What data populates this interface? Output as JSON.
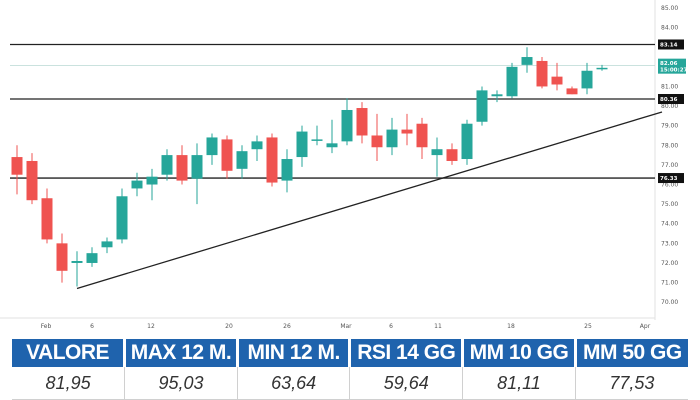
{
  "chart_data": {
    "type": "candlestick",
    "ylim": [
      69.5,
      85
    ],
    "y_ticks": [
      "85.00",
      "84.00",
      "83.00",
      "82.00",
      "81.00",
      "80.00",
      "79.00",
      "78.00",
      "77.00",
      "76.00",
      "75.00",
      "74.00",
      "73.00",
      "72.00",
      "71.00",
      "70.00"
    ],
    "x_ticks": [
      "Feb",
      "6",
      "12",
      "20",
      "26",
      "Mar",
      "6",
      "11",
      "18",
      "25",
      "Apr"
    ],
    "candles": [
      {
        "o": 77.4,
        "h": 78.0,
        "l": 75.5,
        "c": 76.5
      },
      {
        "o": 77.2,
        "h": 77.6,
        "l": 75.0,
        "c": 75.2
      },
      {
        "o": 75.3,
        "h": 75.8,
        "l": 73.0,
        "c": 73.2
      },
      {
        "o": 73.0,
        "h": 73.5,
        "l": 71.0,
        "c": 71.6
      },
      {
        "o": 72.0,
        "h": 72.6,
        "l": 70.8,
        "c": 72.1
      },
      {
        "o": 72.0,
        "h": 72.8,
        "l": 71.8,
        "c": 72.5
      },
      {
        "o": 72.8,
        "h": 73.3,
        "l": 72.5,
        "c": 73.1
      },
      {
        "o": 73.2,
        "h": 75.8,
        "l": 73.0,
        "c": 75.4
      },
      {
        "o": 75.8,
        "h": 76.6,
        "l": 75.4,
        "c": 76.2
      },
      {
        "o": 76.0,
        "h": 76.8,
        "l": 75.2,
        "c": 76.4
      },
      {
        "o": 76.5,
        "h": 77.8,
        "l": 76.2,
        "c": 77.5
      },
      {
        "o": 77.5,
        "h": 78.0,
        "l": 76.0,
        "c": 76.2
      },
      {
        "o": 76.3,
        "h": 78.1,
        "l": 75.0,
        "c": 77.5
      },
      {
        "o": 77.5,
        "h": 78.6,
        "l": 77.0,
        "c": 78.4
      },
      {
        "o": 78.3,
        "h": 78.5,
        "l": 76.3,
        "c": 76.7
      },
      {
        "o": 76.8,
        "h": 78.0,
        "l": 76.3,
        "c": 77.7
      },
      {
        "o": 77.8,
        "h": 78.5,
        "l": 77.2,
        "c": 78.2
      },
      {
        "o": 78.4,
        "h": 78.6,
        "l": 75.9,
        "c": 76.1
      },
      {
        "o": 76.2,
        "h": 77.8,
        "l": 75.6,
        "c": 77.3
      },
      {
        "o": 77.4,
        "h": 79.0,
        "l": 76.9,
        "c": 78.7
      },
      {
        "o": 78.3,
        "h": 79.0,
        "l": 78.0,
        "c": 78.3
      },
      {
        "o": 77.9,
        "h": 79.3,
        "l": 77.6,
        "c": 78.1
      },
      {
        "o": 78.2,
        "h": 80.4,
        "l": 78.0,
        "c": 79.8
      },
      {
        "o": 79.9,
        "h": 80.2,
        "l": 78.1,
        "c": 78.5
      },
      {
        "o": 78.5,
        "h": 79.6,
        "l": 77.2,
        "c": 77.9
      },
      {
        "o": 77.9,
        "h": 79.4,
        "l": 77.5,
        "c": 78.8
      },
      {
        "o": 78.8,
        "h": 79.6,
        "l": 78.0,
        "c": 78.6
      },
      {
        "o": 79.1,
        "h": 79.4,
        "l": 77.3,
        "c": 77.9
      },
      {
        "o": 77.5,
        "h": 78.4,
        "l": 76.4,
        "c": 77.8
      },
      {
        "o": 77.8,
        "h": 78.1,
        "l": 77.0,
        "c": 77.2
      },
      {
        "o": 77.3,
        "h": 79.3,
        "l": 77.0,
        "c": 79.1
      },
      {
        "o": 79.2,
        "h": 81.0,
        "l": 79.0,
        "c": 80.8
      },
      {
        "o": 80.5,
        "h": 80.8,
        "l": 80.2,
        "c": 80.6
      },
      {
        "o": 80.5,
        "h": 82.2,
        "l": 80.4,
        "c": 82.0
      },
      {
        "o": 82.1,
        "h": 83.0,
        "l": 81.7,
        "c": 82.5
      },
      {
        "o": 82.3,
        "h": 82.5,
        "l": 80.9,
        "c": 81.0
      },
      {
        "o": 81.5,
        "h": 82.2,
        "l": 80.8,
        "c": 81.1
      },
      {
        "o": 80.9,
        "h": 81.0,
        "l": 80.6,
        "c": 80.6
      },
      {
        "o": 80.9,
        "h": 82.2,
        "l": 80.6,
        "c": 81.8
      },
      {
        "o": 81.9,
        "h": 82.1,
        "l": 81.8,
        "c": 81.95
      }
    ],
    "levels": [
      {
        "label": "83.14",
        "value": 83.14,
        "color": "#222222"
      },
      {
        "label": "80.36",
        "value": 80.36,
        "color": "#222222"
      },
      {
        "label": "76.33",
        "value": 76.33,
        "color": "#222222"
      }
    ],
    "last_price": {
      "label": "82.06",
      "sublabel": "15:00:27",
      "value": 82.06,
      "color": "#26a69a"
    },
    "trendline": {
      "from": {
        "candle": 4,
        "value": 70.7
      },
      "to": {
        "candle": 43,
        "value": 79.7
      }
    },
    "colors": {
      "up": "#26a69a",
      "down": "#ef5350",
      "line": "#222222"
    }
  },
  "stats": {
    "headers": [
      "VALORE",
      "MAX 12 M.",
      "MIN 12 M.",
      "RSI 14 GG",
      "MM 10 GG",
      "MM 50 GG"
    ],
    "values": [
      "81,95",
      "95,03",
      "63,64",
      "59,64",
      "81,11",
      "77,53"
    ]
  }
}
